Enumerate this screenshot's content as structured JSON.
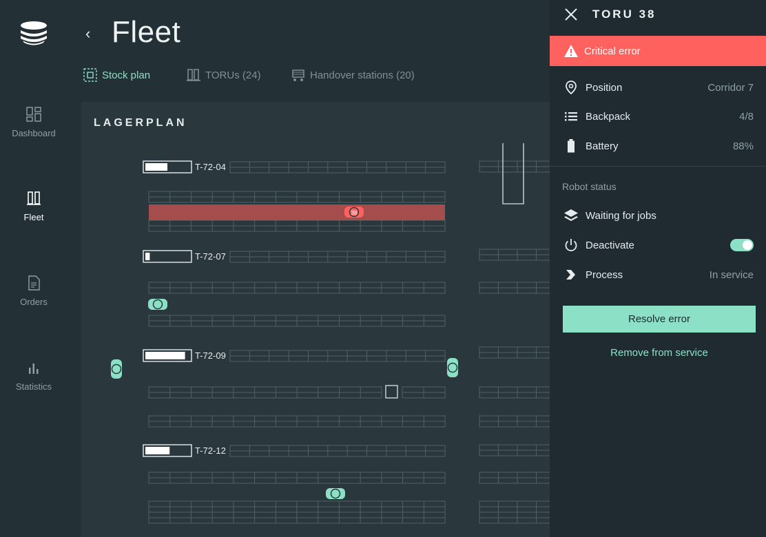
{
  "sidebar": {
    "logo_icon": "stacked-discs-logo",
    "items": [
      {
        "label": "Dashboard",
        "icon": "grid-icon",
        "active": false
      },
      {
        "label": "Fleet",
        "icon": "columns-icon",
        "active": true
      },
      {
        "label": "Orders",
        "icon": "document-icon",
        "active": false
      },
      {
        "label": "Statistics",
        "icon": "bar-chart-icon",
        "active": false
      }
    ]
  },
  "header": {
    "back_icon": "chevron-left-icon",
    "title": "Fleet",
    "tabs": [
      {
        "label": "Stock plan",
        "icon": "stock-plan-icon",
        "active": true
      },
      {
        "label": "TORUs (24)",
        "icon": "torus-icon",
        "active": false
      },
      {
        "label": "Handover stations (20)",
        "icon": "cart-icon",
        "active": false
      }
    ]
  },
  "map": {
    "title": "LAGERPLAN",
    "shelves": [
      {
        "label": "T-72-04",
        "fill_fraction": 0.5
      },
      {
        "label": "T-72-07",
        "fill_fraction": 0.1
      },
      {
        "label": "T-72-09",
        "fill_fraction": 0.9
      },
      {
        "label": "T-72-12",
        "fill_fraction": 0.55
      }
    ],
    "error_robot_label": "38"
  },
  "panel": {
    "title": "TORU 38",
    "alert": "Critical error",
    "details": [
      {
        "label": "Position",
        "value": "Corridor 7",
        "icon": "map-pin-icon"
      },
      {
        "label": "Backpack",
        "value": "4/8",
        "icon": "list-icon"
      },
      {
        "label": "Battery",
        "value": "88%",
        "icon": "battery-icon"
      }
    ],
    "section_label": "Robot status",
    "status": [
      {
        "label": "Waiting for jobs",
        "value": "",
        "icon": "layers-icon"
      },
      {
        "label": "Deactivate",
        "value": "",
        "icon": "power-icon"
      },
      {
        "label": "Process",
        "value": "In service",
        "icon": "chevron-right-icon"
      }
    ],
    "resolve_label": "Resolve error",
    "remove_label": "Remove from service"
  },
  "colors": {
    "accent": "#8be0c5",
    "error": "#ff625e",
    "background": "#233036"
  }
}
